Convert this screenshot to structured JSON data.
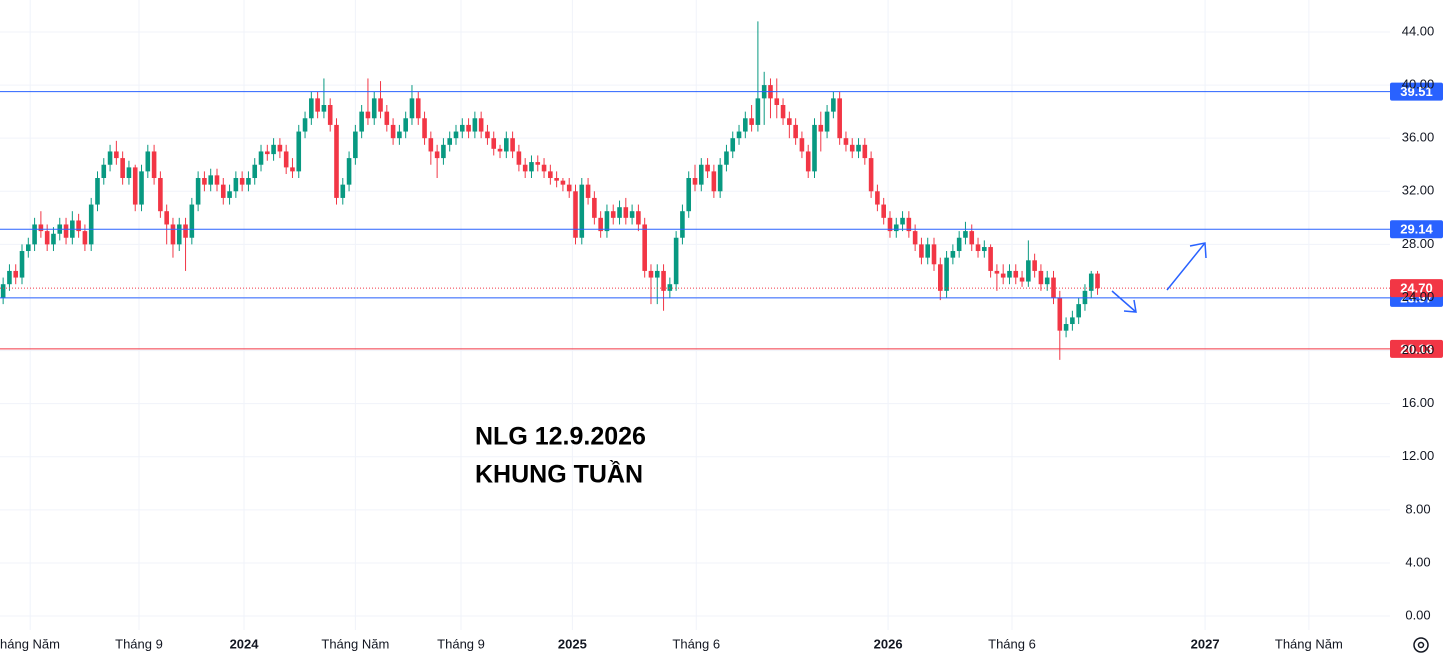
{
  "chart_data": {
    "type": "candlestick",
    "annotations": [
      "NLG 12.9.2026",
      "KHUNG TUẦN"
    ],
    "up_color": "#089981",
    "down_color": "#f23645",
    "grid": true,
    "xlim": [
      -0.5,
      220.5
    ],
    "xticks": [
      {
        "value": 4.3,
        "label": "háng Năm"
      },
      {
        "value": 21.6,
        "label": "Tháng 9"
      },
      {
        "value": 38.3,
        "label": "2024"
      },
      {
        "value": 56,
        "label": "Tháng Năm"
      },
      {
        "value": 72.8,
        "label": "Tháng 9"
      },
      {
        "value": 90.5,
        "label": "2025"
      },
      {
        "value": 110.2,
        "label": "Tháng 6"
      },
      {
        "value": 140.7,
        "label": "2026"
      },
      {
        "value": 160.4,
        "label": "Tháng 6"
      },
      {
        "value": 191.1,
        "label": "2027"
      },
      {
        "value": 207.6,
        "label": "Tháng Năm"
      }
    ],
    "ylim": [
      -1.05,
      46.41
    ],
    "yticks": [
      {
        "value": 0,
        "label": "0.00"
      },
      {
        "value": 4,
        "label": "4.00"
      },
      {
        "value": 8,
        "label": "8.00"
      },
      {
        "value": 12,
        "label": "12.00"
      },
      {
        "value": 16,
        "label": "16.00"
      },
      {
        "value": 20,
        "label": "20.00"
      },
      {
        "value": 24,
        "label": "24.00"
      },
      {
        "value": 28,
        "label": "28.00"
      },
      {
        "value": 32,
        "label": "32.00"
      },
      {
        "value": 36,
        "label": "36.00"
      },
      {
        "value": 40,
        "label": "40.00"
      },
      {
        "value": 44,
        "label": "44.00"
      }
    ],
    "levels": [
      {
        "value": 39.51,
        "label": "39.51",
        "color": "#2962ff",
        "style": "solid"
      },
      {
        "value": 29.14,
        "label": "29.14",
        "color": "#2962ff",
        "style": "solid"
      },
      {
        "value": 23.97,
        "label": "23.97",
        "color": "#2962ff",
        "style": "solid"
      },
      {
        "value": 20.13,
        "label": "20.13",
        "color": "#f23645",
        "style": "solid"
      },
      {
        "value": 24.7,
        "label": "24.70",
        "color": "#f23645",
        "style": "dotted"
      }
    ],
    "series": [
      {
        "name": "NLG",
        "values": [
          [
            24.0,
            25.5,
            23.5,
            25.0
          ],
          [
            25.0,
            26.5,
            24.5,
            26.0
          ],
          [
            26.0,
            26.5,
            25.0,
            25.5
          ],
          [
            25.5,
            28.0,
            25.0,
            27.5
          ],
          [
            27.5,
            28.5,
            27.0,
            28.0
          ],
          [
            28.0,
            30.0,
            27.5,
            29.5
          ],
          [
            29.5,
            30.5,
            28.5,
            29.0
          ],
          [
            29.0,
            29.5,
            27.5,
            28.0
          ],
          [
            28.0,
            29.3,
            27.5,
            28.8
          ],
          [
            28.8,
            30.0,
            28.3,
            29.5
          ],
          [
            29.5,
            30.0,
            28.0,
            28.5
          ],
          [
            28.5,
            30.5,
            28.0,
            29.8
          ],
          [
            29.8,
            30.3,
            28.5,
            29.0
          ],
          [
            29.0,
            29.5,
            27.5,
            28.0
          ],
          [
            28.0,
            31.5,
            27.5,
            31.0
          ],
          [
            31.0,
            33.5,
            30.5,
            33.0
          ],
          [
            33.0,
            34.5,
            32.5,
            34.0
          ],
          [
            34.0,
            35.5,
            33.5,
            35.0
          ],
          [
            35.0,
            35.8,
            34.0,
            34.5
          ],
          [
            34.5,
            35.0,
            32.5,
            33.0
          ],
          [
            33.0,
            34.3,
            32.5,
            33.8
          ],
          [
            33.8,
            34.0,
            30.5,
            31.0
          ],
          [
            31.0,
            34.0,
            30.5,
            33.5
          ],
          [
            33.5,
            35.5,
            33.0,
            35.0
          ],
          [
            35.0,
            35.5,
            32.5,
            33.0
          ],
          [
            33.0,
            33.5,
            30.0,
            30.5
          ],
          [
            30.5,
            31.0,
            28.0,
            29.5
          ],
          [
            29.5,
            30.0,
            27.0,
            28.0
          ],
          [
            28.0,
            30.0,
            27.5,
            29.5
          ],
          [
            29.5,
            30.0,
            26.0,
            28.5
          ],
          [
            28.5,
            31.5,
            28.0,
            31.0
          ],
          [
            31.0,
            33.5,
            30.5,
            33.0
          ],
          [
            33.0,
            33.5,
            32.0,
            32.5
          ],
          [
            32.5,
            33.7,
            32.0,
            33.2
          ],
          [
            33.2,
            33.7,
            32.0,
            32.5
          ],
          [
            32.5,
            33.0,
            31.0,
            31.5
          ],
          [
            31.5,
            32.5,
            31.0,
            32.0
          ],
          [
            32.0,
            33.5,
            31.5,
            33.0
          ],
          [
            33.0,
            33.5,
            32.0,
            32.5
          ],
          [
            32.5,
            33.5,
            32.0,
            33.0
          ],
          [
            33.0,
            34.5,
            32.5,
            34.0
          ],
          [
            34.0,
            35.5,
            33.5,
            35.0
          ],
          [
            35.0,
            35.5,
            34.3,
            34.8
          ],
          [
            34.8,
            36.0,
            34.3,
            35.5
          ],
          [
            35.5,
            36.0,
            34.5,
            35.0
          ],
          [
            35.0,
            35.5,
            33.3,
            33.8
          ],
          [
            33.8,
            34.5,
            33.0,
            33.5
          ],
          [
            33.5,
            37.0,
            33.0,
            36.5
          ],
          [
            36.5,
            38.0,
            36.0,
            37.5
          ],
          [
            37.5,
            39.5,
            37.0,
            39.0
          ],
          [
            39.0,
            39.5,
            37.5,
            38.0
          ],
          [
            38.0,
            40.5,
            37.5,
            38.5
          ],
          [
            38.5,
            39.0,
            36.5,
            37.0
          ],
          [
            37.0,
            37.5,
            31.0,
            31.5
          ],
          [
            31.5,
            33.0,
            31.0,
            32.5
          ],
          [
            32.5,
            35.0,
            32.0,
            34.5
          ],
          [
            34.5,
            37.0,
            34.0,
            36.5
          ],
          [
            36.5,
            38.5,
            36.0,
            38.0
          ],
          [
            38.0,
            40.5,
            37.0,
            37.5
          ],
          [
            37.5,
            39.5,
            37.0,
            39.0
          ],
          [
            39.0,
            40.3,
            37.5,
            38.0
          ],
          [
            38.0,
            38.5,
            36.5,
            37.0
          ],
          [
            37.0,
            37.5,
            35.5,
            36.0
          ],
          [
            36.0,
            37.0,
            35.5,
            36.5
          ],
          [
            36.5,
            38.0,
            36.0,
            37.5
          ],
          [
            37.5,
            40.0,
            37.0,
            39.0
          ],
          [
            39.0,
            39.5,
            37.0,
            37.5
          ],
          [
            37.5,
            38.0,
            35.5,
            36.0
          ],
          [
            36.0,
            36.5,
            34.0,
            35.0
          ],
          [
            35.0,
            35.5,
            33.0,
            34.5
          ],
          [
            34.5,
            36.0,
            34.0,
            35.5
          ],
          [
            35.5,
            36.5,
            35.0,
            36.0
          ],
          [
            36.0,
            37.0,
            35.5,
            36.5
          ],
          [
            36.5,
            37.5,
            36.0,
            37.0
          ],
          [
            37.0,
            37.5,
            36.0,
            36.5
          ],
          [
            36.5,
            38.0,
            36.0,
            37.5
          ],
          [
            37.5,
            38.0,
            36.0,
            36.5
          ],
          [
            36.5,
            37.0,
            35.5,
            36.0
          ],
          [
            36.0,
            36.5,
            34.7,
            35.2
          ],
          [
            35.2,
            35.5,
            34.5,
            35.0
          ],
          [
            35.0,
            36.5,
            34.5,
            36.0
          ],
          [
            36.0,
            36.5,
            34.5,
            35.0
          ],
          [
            35.0,
            35.5,
            33.5,
            34.0
          ],
          [
            34.0,
            34.5,
            33.0,
            33.5
          ],
          [
            33.5,
            34.7,
            33.0,
            34.2
          ],
          [
            34.2,
            34.7,
            33.5,
            34.0
          ],
          [
            34.0,
            34.5,
            33.0,
            33.5
          ],
          [
            33.5,
            34.0,
            32.5,
            33.0
          ],
          [
            33.0,
            33.5,
            32.3,
            32.8
          ],
          [
            32.8,
            33.0,
            32.0,
            32.5
          ],
          [
            32.5,
            33.0,
            31.5,
            32.0
          ],
          [
            32.0,
            32.5,
            28.0,
            28.5
          ],
          [
            28.5,
            33.0,
            28.0,
            32.5
          ],
          [
            32.5,
            33.0,
            31.0,
            31.5
          ],
          [
            31.5,
            32.0,
            29.5,
            30.0
          ],
          [
            30.0,
            30.5,
            28.5,
            29.0
          ],
          [
            29.0,
            31.0,
            28.5,
            30.5
          ],
          [
            30.5,
            31.0,
            29.5,
            30.0
          ],
          [
            30.0,
            31.3,
            29.5,
            30.8
          ],
          [
            30.8,
            31.5,
            29.5,
            30.0
          ],
          [
            30.0,
            31.0,
            29.5,
            30.5
          ],
          [
            30.5,
            31.0,
            29.0,
            29.5
          ],
          [
            29.5,
            30.0,
            25.5,
            26.0
          ],
          [
            26.0,
            26.5,
            23.5,
            25.5
          ],
          [
            25.5,
            26.5,
            23.5,
            26.0
          ],
          [
            26.0,
            26.5,
            23.0,
            24.5
          ],
          [
            24.5,
            25.5,
            24.0,
            25.0
          ],
          [
            25.0,
            29.0,
            24.5,
            28.5
          ],
          [
            28.5,
            31.0,
            28.0,
            30.5
          ],
          [
            30.5,
            33.5,
            30.0,
            33.0
          ],
          [
            33.0,
            34.0,
            32.0,
            32.5
          ],
          [
            32.5,
            34.5,
            32.0,
            34.0
          ],
          [
            34.0,
            34.5,
            33.0,
            33.5
          ],
          [
            33.5,
            34.0,
            31.5,
            32.0
          ],
          [
            32.0,
            34.5,
            31.5,
            34.0
          ],
          [
            34.0,
            35.5,
            33.5,
            35.0
          ],
          [
            35.0,
            36.5,
            34.5,
            36.0
          ],
          [
            36.0,
            37.0,
            35.5,
            36.5
          ],
          [
            36.5,
            38.0,
            36.0,
            37.5
          ],
          [
            37.5,
            38.5,
            36.5,
            37.0
          ],
          [
            37.0,
            44.8,
            36.5,
            39.0
          ],
          [
            39.0,
            41.0,
            37.0,
            40.0
          ],
          [
            40.0,
            40.5,
            37.5,
            39.0
          ],
          [
            39.0,
            40.5,
            37.5,
            38.5
          ],
          [
            38.5,
            39.0,
            37.0,
            37.5
          ],
          [
            37.5,
            38.0,
            36.0,
            37.0
          ],
          [
            37.0,
            37.5,
            35.5,
            36.0
          ],
          [
            36.0,
            36.5,
            34.5,
            35.0
          ],
          [
            35.0,
            35.5,
            33.0,
            33.5
          ],
          [
            33.5,
            37.5,
            33.0,
            37.0
          ],
          [
            37.0,
            38.0,
            35.0,
            36.5
          ],
          [
            36.5,
            38.5,
            36.0,
            38.0
          ],
          [
            38.0,
            39.5,
            37.5,
            39.0
          ],
          [
            39.0,
            39.5,
            35.5,
            36.0
          ],
          [
            36.0,
            36.5,
            35.0,
            35.5
          ],
          [
            35.5,
            36.0,
            34.5,
            35.0
          ],
          [
            35.0,
            36.0,
            34.5,
            35.5
          ],
          [
            35.5,
            36.0,
            34.0,
            34.5
          ],
          [
            34.5,
            35.0,
            31.5,
            32.0
          ],
          [
            32.0,
            32.5,
            30.5,
            31.0
          ],
          [
            31.0,
            31.5,
            29.5,
            30.0
          ],
          [
            30.0,
            30.5,
            28.5,
            29.0
          ],
          [
            29.0,
            30.0,
            28.5,
            29.5
          ],
          [
            29.5,
            30.5,
            29.0,
            30.0
          ],
          [
            30.0,
            30.5,
            28.5,
            29.0
          ],
          [
            29.0,
            29.5,
            27.5,
            28.0
          ],
          [
            28.0,
            28.5,
            26.5,
            27.0
          ],
          [
            27.0,
            28.5,
            26.5,
            28.0
          ],
          [
            28.0,
            28.5,
            26.0,
            26.5
          ],
          [
            26.5,
            27.0,
            23.8,
            24.5
          ],
          [
            24.5,
            27.5,
            24.0,
            27.0
          ],
          [
            27.0,
            28.0,
            26.5,
            27.5
          ],
          [
            27.5,
            29.0,
            27.0,
            28.5
          ],
          [
            28.5,
            29.7,
            28.0,
            29.0
          ],
          [
            29.0,
            29.5,
            27.5,
            28.0
          ],
          [
            28.0,
            28.5,
            27.0,
            27.5
          ],
          [
            27.5,
            28.3,
            27.0,
            27.8
          ],
          [
            27.8,
            28.0,
            25.5,
            26.0
          ],
          [
            26.0,
            26.5,
            24.5,
            25.8
          ],
          [
            25.8,
            26.5,
            25.0,
            25.5
          ],
          [
            25.5,
            26.5,
            25.0,
            26.0
          ],
          [
            26.0,
            26.5,
            25.0,
            25.5
          ],
          [
            25.5,
            26.0,
            24.8,
            25.2
          ],
          [
            25.2,
            28.3,
            24.8,
            26.8
          ],
          [
            26.8,
            27.3,
            25.5,
            26.0
          ],
          [
            26.0,
            26.5,
            24.5,
            25.0
          ],
          [
            25.0,
            26.0,
            24.5,
            25.5
          ],
          [
            25.5,
            26.0,
            23.5,
            24.0
          ],
          [
            24.0,
            24.5,
            19.3,
            21.5
          ],
          [
            21.5,
            22.5,
            21.0,
            22.0
          ],
          [
            22.0,
            23.0,
            21.5,
            22.5
          ],
          [
            22.5,
            24.0,
            22.0,
            23.5
          ],
          [
            23.5,
            25.0,
            23.0,
            24.5
          ],
          [
            24.5,
            26.0,
            24.0,
            25.8
          ],
          [
            25.8,
            26.0,
            24.2,
            24.7
          ]
        ]
      }
    ]
  }
}
